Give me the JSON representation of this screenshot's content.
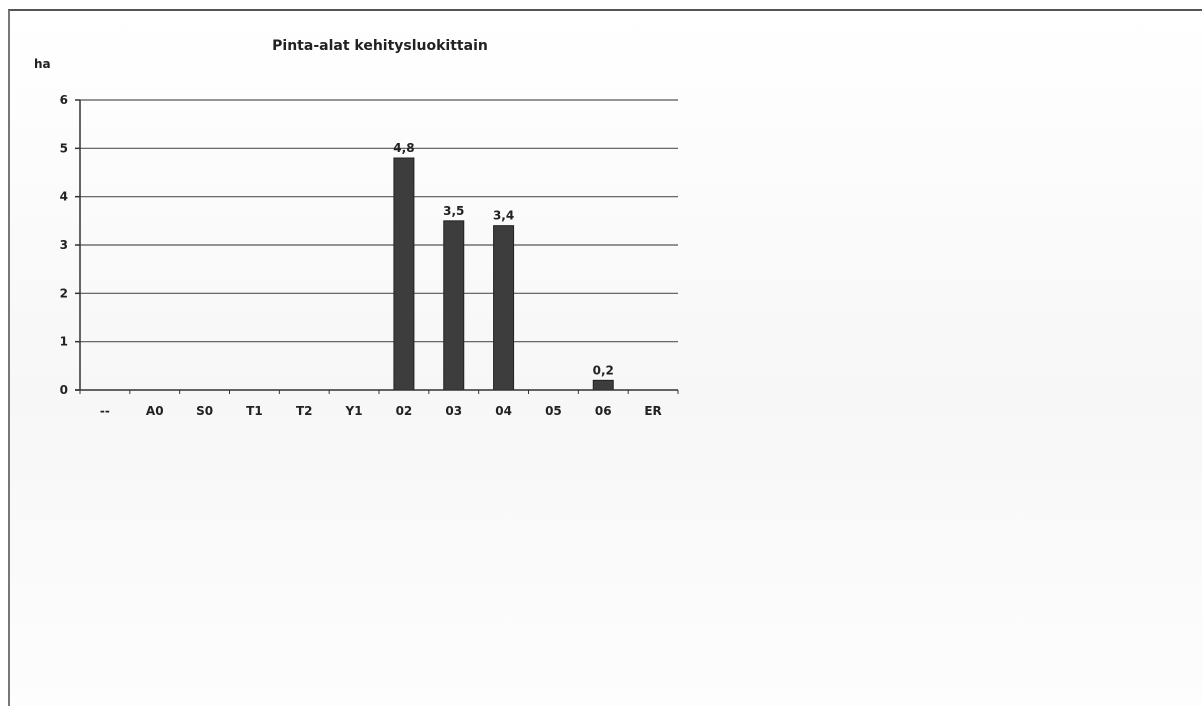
{
  "chart_data": {
    "type": "bar",
    "title": "Pinta-alat kehitysluokittain",
    "ylabel": "ha",
    "xlabel": "",
    "categories": [
      "--",
      "A0",
      "S0",
      "T1",
      "T2",
      "Y1",
      "02",
      "03",
      "04",
      "05",
      "06",
      "ER"
    ],
    "values": [
      0,
      0,
      0,
      0,
      0,
      0,
      4.8,
      3.5,
      3.4,
      0,
      0.2,
      0
    ],
    "data_labels": [
      "",
      "",
      "",
      "",
      "",
      "",
      "4,8",
      "3,5",
      "3,4",
      "",
      "0,2",
      ""
    ],
    "y_ticks": [
      "0",
      "1",
      "2",
      "3",
      "4",
      "5",
      "6"
    ],
    "ylim": [
      0,
      6
    ],
    "grid": true,
    "legend": "none",
    "colors": {
      "bar": "#3d3d3d",
      "grid": "#555555",
      "axis": "#333333"
    }
  }
}
